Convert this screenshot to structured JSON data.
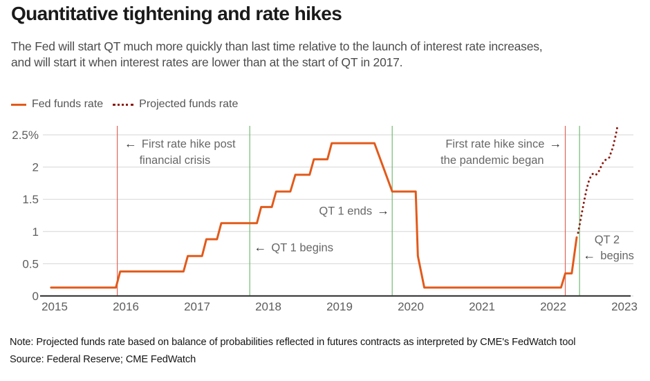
{
  "header": {
    "title": "Quantitative tightening and rate hikes",
    "subtitle_line1": "The Fed will start QT much more quickly than last time relative to the launch of interest rate increases,",
    "subtitle_line2": "and will start it when interest rates are lower than at the start of QT in 2017."
  },
  "legend": {
    "items": [
      {
        "label": "Fed funds rate",
        "style": "solid",
        "color": "#e25a1a"
      },
      {
        "label": "Projected funds rate",
        "style": "dotted",
        "color": "#8b1a10"
      }
    ]
  },
  "footer": {
    "note": "Note: Projected funds rate based on balance of probabilities reflected in futures contracts as interpreted by CME's FedWatch tool",
    "source": "Source: Federal Reserve; CME FedWatch"
  },
  "chart_data": {
    "type": "line",
    "title": "Quantitative tightening and rate hikes",
    "xlabel": "",
    "ylabel": "",
    "grid": true,
    "legend_position": "top-left",
    "x_range": [
      2015,
      2023
    ],
    "y_range": [
      0,
      2.5
    ],
    "x_ticks": [
      2015,
      2016,
      2017,
      2018,
      2019,
      2020,
      2021,
      2022,
      2023
    ],
    "y_ticks": [
      {
        "value": 0,
        "label": "0"
      },
      {
        "value": 0.5,
        "label": "0.5"
      },
      {
        "value": 1,
        "label": "1"
      },
      {
        "value": 1.5,
        "label": "1.5"
      },
      {
        "value": 2,
        "label": "2"
      },
      {
        "value": 2.5,
        "label": "2.5%"
      }
    ],
    "colors": {
      "fed_line": "#e25a1a",
      "projected_line": "#8b1a10",
      "event_red": "#e4635a",
      "event_green": "#71ba74",
      "grid": "#d6d6d6",
      "axis": "#3f3f3f",
      "tick_label": "#5d5d5d",
      "annotation": "#676767",
      "arrow": "#333333"
    },
    "series": [
      {
        "name": "Fed funds rate",
        "style": "solid",
        "color": "#e25a1a",
        "points": [
          [
            2014.95,
            0.13
          ],
          [
            2015.86,
            0.13
          ],
          [
            2015.92,
            0.38
          ],
          [
            2016.81,
            0.38
          ],
          [
            2016.87,
            0.62
          ],
          [
            2017.07,
            0.62
          ],
          [
            2017.13,
            0.88
          ],
          [
            2017.28,
            0.88
          ],
          [
            2017.34,
            1.13
          ],
          [
            2017.84,
            1.13
          ],
          [
            2017.9,
            1.38
          ],
          [
            2018.05,
            1.38
          ],
          [
            2018.11,
            1.62
          ],
          [
            2018.31,
            1.62
          ],
          [
            2018.38,
            1.88
          ],
          [
            2018.58,
            1.88
          ],
          [
            2018.64,
            2.12
          ],
          [
            2018.83,
            2.12
          ],
          [
            2018.89,
            2.37
          ],
          [
            2019.49,
            2.37
          ],
          [
            2019.74,
            1.62
          ],
          [
            2020.07,
            1.62
          ],
          [
            2020.1,
            0.62
          ],
          [
            2020.19,
            0.13
          ],
          [
            2022.11,
            0.13
          ],
          [
            2022.17,
            0.35
          ],
          [
            2022.26,
            0.35
          ],
          [
            2022.33,
            0.91
          ]
        ]
      },
      {
        "name": "Projected funds rate",
        "style": "dotted",
        "color": "#8b1a10",
        "points": [
          [
            2022.35,
            0.98
          ],
          [
            2022.38,
            1.15
          ],
          [
            2022.41,
            1.33
          ],
          [
            2022.44,
            1.5
          ],
          [
            2022.47,
            1.66
          ],
          [
            2022.5,
            1.78
          ],
          [
            2022.53,
            1.86
          ],
          [
            2022.56,
            1.9
          ],
          [
            2022.6,
            1.88
          ],
          [
            2022.63,
            1.91
          ],
          [
            2022.66,
            1.98
          ],
          [
            2022.69,
            2.05
          ],
          [
            2022.72,
            2.1
          ],
          [
            2022.76,
            2.13
          ],
          [
            2022.79,
            2.15
          ],
          [
            2022.81,
            2.22
          ],
          [
            2022.84,
            2.31
          ],
          [
            2022.86,
            2.41
          ],
          [
            2022.88,
            2.5
          ],
          [
            2022.9,
            2.62
          ]
        ]
      }
    ],
    "event_lines": [
      {
        "name": "first-rate-hike-post-crisis",
        "x": 2015.88,
        "color": "red"
      },
      {
        "name": "qt1-begins",
        "x": 2017.74,
        "color": "green"
      },
      {
        "name": "qt1-ends",
        "x": 2019.74,
        "color": "green"
      },
      {
        "name": "first-rate-hike-pandemic",
        "x": 2022.17,
        "color": "red"
      },
      {
        "name": "qt2-begins",
        "x": 2022.37,
        "color": "green"
      }
    ],
    "annotations": [
      {
        "name": "first-rate-hike-post-crisis-line1",
        "text": "First rate hike post",
        "arrow": "left",
        "x": 2015.98,
        "y": 2.3,
        "anchor": "start"
      },
      {
        "name": "first-rate-hike-post-crisis-line2",
        "text": "financial crisis",
        "x": 2016.19,
        "y": 2.05,
        "anchor": "start"
      },
      {
        "name": "first-rate-hike-pandemic-line1",
        "text": "First rate hike since",
        "arrow": "right",
        "x": 2022.12,
        "y": 2.3,
        "anchor": "end"
      },
      {
        "name": "first-rate-hike-pandemic-line2",
        "text": "the pandemic began",
        "x": 2021.87,
        "y": 2.05,
        "anchor": "end"
      },
      {
        "name": "qt1-ends",
        "text": "QT 1 ends",
        "arrow": "right",
        "x": 2019.7,
        "y": 1.26,
        "anchor": "end"
      },
      {
        "name": "qt1-begins",
        "text": "QT 1 begins",
        "arrow": "left",
        "x": 2017.8,
        "y": 0.69,
        "anchor": "start"
      },
      {
        "name": "qt2-begins-line1",
        "text": "QT 2",
        "x": 2022.58,
        "y": 0.815,
        "anchor": "start"
      },
      {
        "name": "qt2-begins-line2",
        "text": "begins",
        "arrow": "left",
        "x": 2022.42,
        "y": 0.57,
        "anchor": "start"
      }
    ]
  }
}
